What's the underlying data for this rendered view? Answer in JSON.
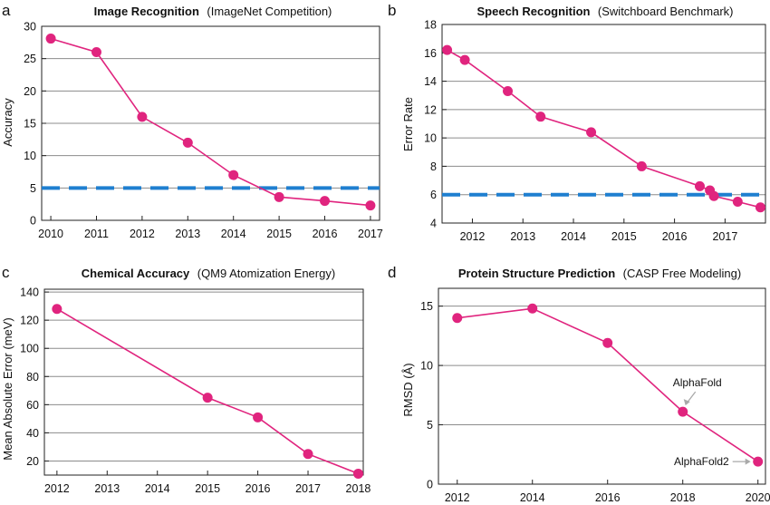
{
  "colors": {
    "series": "#e0247e",
    "baseline": "#1f7fd0",
    "grid": "#8c8c8c",
    "axis": "#222222",
    "arrow": "#a9a9a9"
  },
  "chart_data": [
    {
      "panel": "a",
      "type": "line",
      "title": "Image Recognition",
      "subtitle": "(ImageNet Competition)",
      "xlabel": "",
      "ylabel": "Accuracy",
      "xlim": [
        2009.8,
        2017.2
      ],
      "ylim": [
        0,
        30
      ],
      "xticks": [
        2010,
        2011,
        2012,
        2013,
        2014,
        2015,
        2016,
        2017
      ],
      "yticks": [
        0,
        5,
        10,
        15,
        20,
        25,
        30
      ],
      "grid": "horizontal",
      "series": [
        {
          "x": [
            2010,
            2011,
            2012,
            2013,
            2014,
            2015,
            2016,
            2017
          ],
          "y": [
            28.1,
            26.0,
            16.0,
            12.0,
            7.0,
            3.6,
            3.0,
            2.3
          ]
        }
      ],
      "reference_line": {
        "y": 5,
        "style": "dashed"
      },
      "annotations": []
    },
    {
      "panel": "b",
      "type": "line",
      "title": "Speech Recognition",
      "subtitle": "(Switchboard Benchmark)",
      "xlabel": "",
      "ylabel": "Error Rate",
      "xlim": [
        2011.4,
        2017.8
      ],
      "ylim": [
        4,
        18
      ],
      "xticks": [
        2012,
        2013,
        2014,
        2015,
        2016,
        2017
      ],
      "yticks": [
        4,
        6,
        8,
        10,
        12,
        14,
        16,
        18
      ],
      "grid": "horizontal",
      "series": [
        {
          "x": [
            2011.5,
            2011.85,
            2012.7,
            2013.35,
            2014.35,
            2015.35,
            2016.5,
            2016.7,
            2016.78,
            2017.25,
            2017.7
          ],
          "y": [
            16.2,
            15.5,
            13.3,
            11.5,
            10.4,
            8.0,
            6.6,
            6.3,
            5.9,
            5.5,
            5.1
          ]
        }
      ],
      "reference_line": {
        "y": 6,
        "style": "dashed"
      },
      "annotations": []
    },
    {
      "panel": "c",
      "type": "line",
      "title": "Chemical Accuracy",
      "subtitle": "(QM9 Atomization Energy)",
      "xlabel": "",
      "ylabel": "Mean Absolute Error (meV)",
      "xlim": [
        2011.75,
        2018.1
      ],
      "ylim": [
        10,
        142
      ],
      "xticks": [
        2012,
        2013,
        2014,
        2015,
        2016,
        2017,
        2018
      ],
      "yticks": [
        20,
        40,
        60,
        80,
        100,
        120,
        140
      ],
      "grid": "horizontal",
      "series": [
        {
          "x": [
            2012,
            2015,
            2016,
            2017,
            2018
          ],
          "y": [
            128,
            65,
            51,
            25,
            11
          ]
        }
      ],
      "reference_line": null,
      "annotations": []
    },
    {
      "panel": "d",
      "type": "line",
      "title": "Protein Structure Prediction",
      "subtitle": "(CASP Free Modeling)",
      "xlabel": "",
      "ylabel": "RMSD (Å)",
      "xlim": [
        2011.5,
        2020.2
      ],
      "ylim": [
        0,
        16.5
      ],
      "xticks": [
        2012,
        2014,
        2016,
        2018,
        2020
      ],
      "yticks": [
        0,
        5,
        10,
        15
      ],
      "grid": "horizontal",
      "series": [
        {
          "x": [
            2012,
            2014,
            2016,
            2018,
            2020
          ],
          "y": [
            14.0,
            14.8,
            11.9,
            6.1,
            1.9
          ]
        }
      ],
      "reference_line": null,
      "annotations": [
        {
          "text": "AlphaFold",
          "x": 2018,
          "y": 6.1,
          "placement": "above"
        },
        {
          "text": "AlphaFold2",
          "x": 2020,
          "y": 1.9,
          "placement": "left"
        }
      ]
    }
  ]
}
